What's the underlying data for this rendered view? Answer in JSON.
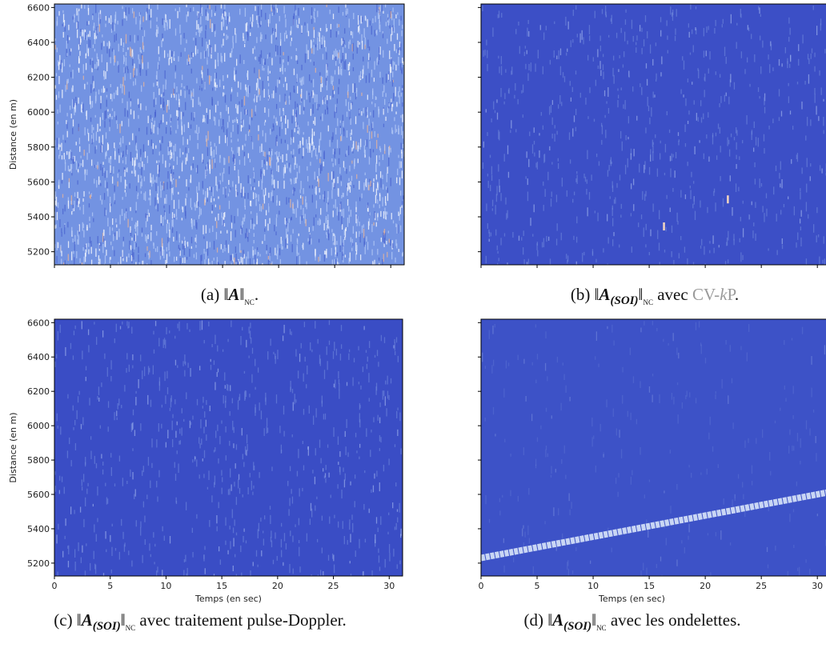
{
  "chart_data": [
    {
      "type": "heatmap",
      "ylabel": "Distance (en m)",
      "ylim": [
        5125,
        6620
      ],
      "yticks": [
        5200,
        5400,
        5600,
        5800,
        6000,
        6200,
        6400,
        6600
      ],
      "show_ytick_labels": true,
      "xlim": [
        0,
        31.2
      ],
      "xticks": [
        0,
        5,
        10,
        15,
        20,
        25,
        30
      ],
      "show_xtick_labels": false,
      "background": "#7393e2",
      "caption": [
        {
          "text": "(a) ‖"
        },
        {
          "text": "A",
          "style": "bold-italic"
        },
        {
          "text": "‖"
        },
        {
          "text": "NC",
          "style": "sub"
        },
        {
          "text": "."
        }
      ]
    },
    {
      "type": "heatmap",
      "ylim": [
        5125,
        6620
      ],
      "yticks": [
        5200,
        5400,
        5600,
        5800,
        6000,
        6200,
        6400,
        6600
      ],
      "show_ytick_labels": false,
      "xlim": [
        0,
        31.2
      ],
      "xticks": [
        0,
        5,
        10,
        15,
        20,
        25,
        30
      ],
      "show_xtick_labels": false,
      "background": "#3c4fc6",
      "highlights": [
        {
          "x": 22,
          "y": 5500
        },
        {
          "x": 16.3,
          "y": 5345
        }
      ],
      "caption": [
        {
          "text": "(b) ‖"
        },
        {
          "text": "A",
          "style": "bold-italic"
        },
        {
          "text": "(SOI)",
          "style": "sub-bold-italic"
        },
        {
          "text": "‖"
        },
        {
          "text": "NC",
          "style": "sub"
        },
        {
          "text": " avec "
        },
        {
          "text": "CV-",
          "style": "gray"
        },
        {
          "text": "k",
          "style": "gray-italic"
        },
        {
          "text": "P",
          "style": "gray"
        },
        {
          "text": "."
        }
      ]
    },
    {
      "type": "heatmap",
      "ylabel": "Distance (en m)",
      "xlabel": "Temps (en sec)",
      "ylim": [
        5125,
        6620
      ],
      "yticks": [
        5200,
        5400,
        5600,
        5800,
        6000,
        6200,
        6400,
        6600
      ],
      "show_ytick_labels": true,
      "xlim": [
        0,
        31.2
      ],
      "xticks": [
        0,
        5,
        10,
        15,
        20,
        25,
        30
      ],
      "show_xtick_labels": true,
      "background": "#3a4dc5",
      "caption": [
        {
          "text": "(c) ‖"
        },
        {
          "text": "A",
          "style": "bold-italic"
        },
        {
          "text": "(SOI)",
          "style": "sub-bold-italic"
        },
        {
          "text": "‖"
        },
        {
          "text": "NC",
          "style": "sub"
        },
        {
          "text": " avec traitement pulse-Doppler."
        }
      ]
    },
    {
      "type": "heatmap",
      "xlabel": "Temps (en sec)",
      "ylim": [
        5125,
        6620
      ],
      "yticks": [
        5200,
        5400,
        5600,
        5800,
        6000,
        6200,
        6400,
        6600
      ],
      "show_ytick_labels": false,
      "xlim": [
        0,
        31.2
      ],
      "xticks": [
        0,
        5,
        10,
        15,
        20,
        25,
        30
      ],
      "show_xtick_labels": true,
      "background": "#3d52c7",
      "ridge": {
        "x": [
          0,
          31.2
        ],
        "y": [
          5230,
          5615
        ],
        "color": "#c9d6f4"
      },
      "caption": [
        {
          "text": "(d) ‖"
        },
        {
          "text": "A",
          "style": "bold-italic"
        },
        {
          "text": "(SOI)",
          "style": "sub-bold-italic"
        },
        {
          "text": "‖"
        },
        {
          "text": "NC",
          "style": "sub"
        },
        {
          "text": " avec les ondelettes."
        }
      ]
    }
  ]
}
